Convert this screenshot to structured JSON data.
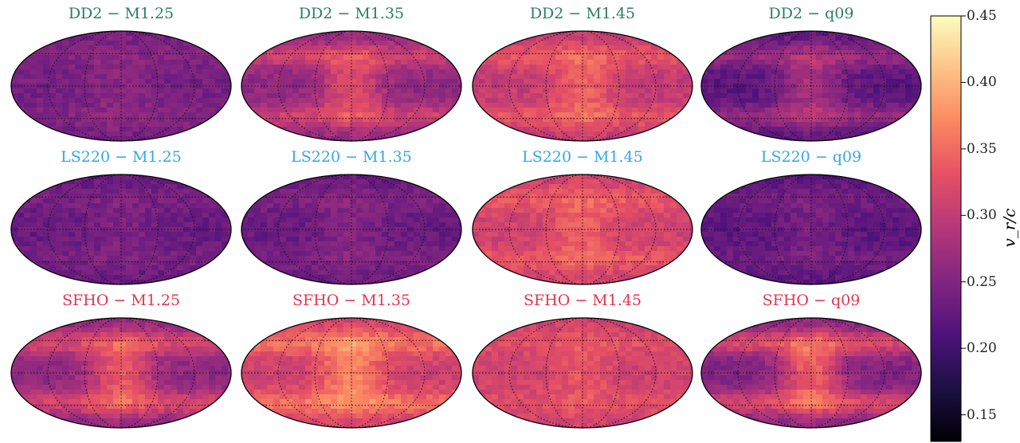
{
  "chart_data": {
    "type": "heatmap",
    "projection": "mollweide",
    "grid": true,
    "colormap": "magma",
    "colormap_stops": [
      "#000004",
      "#1c1044",
      "#4f127b",
      "#812581",
      "#b5367a",
      "#e55064",
      "#fb8761",
      "#fec287",
      "#fcfdbf"
    ],
    "colorbar": {
      "label": "v_r/c",
      "range": [
        0.13,
        0.45
      ],
      "ticks": [
        "0.15",
        "0.20",
        "0.25",
        "0.30",
        "0.35",
        "0.40",
        "0.45"
      ],
      "tick_values": [
        0.15,
        0.2,
        0.25,
        0.3,
        0.35,
        0.4,
        0.45
      ]
    },
    "eos_colors": {
      "DD2": "#2a7f62",
      "LS220": "#33a8e8",
      "SFHO": "#e8344e"
    },
    "panels": [
      {
        "title": "DD2 − M1.25",
        "eos": "DD2",
        "mean_vr": 0.24,
        "hotspot_vr": 0.27
      },
      {
        "title": "DD2 − M1.35",
        "eos": "DD2",
        "mean_vr": 0.26,
        "hotspot_vr": 0.38
      },
      {
        "title": "DD2 − M1.45",
        "eos": "DD2",
        "mean_vr": 0.3,
        "hotspot_vr": 0.38
      },
      {
        "title": "DD2 − q09",
        "eos": "DD2",
        "mean_vr": 0.22,
        "hotspot_vr": 0.33
      },
      {
        "title": "LS220 − M1.25",
        "eos": "LS220",
        "mean_vr": 0.23,
        "hotspot_vr": 0.26
      },
      {
        "title": "LS220 − M1.35",
        "eos": "LS220",
        "mean_vr": 0.23,
        "hotspot_vr": 0.27
      },
      {
        "title": "LS220 − M1.45",
        "eos": "LS220",
        "mean_vr": 0.31,
        "hotspot_vr": 0.37
      },
      {
        "title": "LS220 − q09",
        "eos": "LS220",
        "mean_vr": 0.22,
        "hotspot_vr": 0.26
      },
      {
        "title": "SFHO − M1.25",
        "eos": "SFHO",
        "mean_vr": 0.26,
        "hotspot_vr": 0.4
      },
      {
        "title": "SFHO − M1.35",
        "eos": "SFHO",
        "mean_vr": 0.31,
        "hotspot_vr": 0.42
      },
      {
        "title": "SFHO − M1.45",
        "eos": "SFHO",
        "mean_vr": 0.31,
        "hotspot_vr": 0.35
      },
      {
        "title": "SFHO − q09",
        "eos": "SFHO",
        "mean_vr": 0.25,
        "hotspot_vr": 0.42
      }
    ]
  }
}
